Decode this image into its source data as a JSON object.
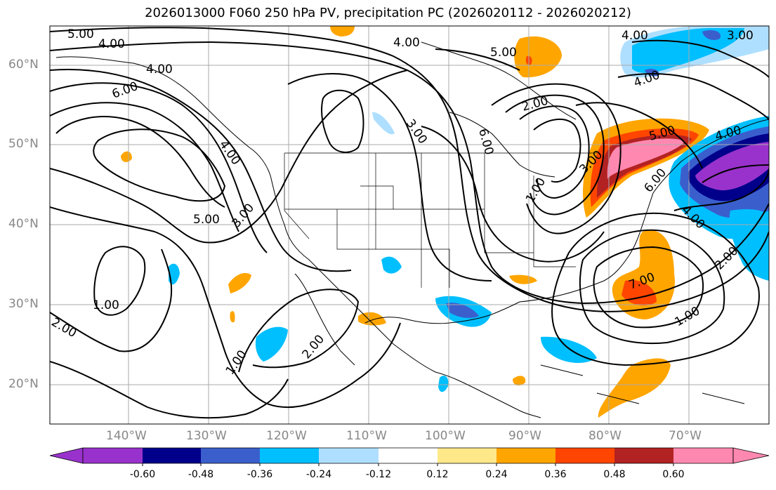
{
  "title": "2026013000 F060 250 hPa PV, precipitation PC (2026020112 - 2026020212)",
  "lat_labels": [
    "60°N",
    "50°N",
    "40°N",
    "30°N",
    "20°N"
  ],
  "lon_labels": [
    "140°W",
    "130°W",
    "120°W",
    "110°W",
    "100°W",
    "90°W",
    "80°W",
    "70°W"
  ],
  "contour_labels": [
    "5.00",
    "4.00",
    "4.00",
    "6.00",
    "4.00",
    "4.00",
    "5.00",
    "3.00",
    "1.00",
    "2.00",
    "1.00",
    "2.00",
    "3.00",
    "4.00",
    "5.00",
    "6.00",
    "2.00",
    "1.00",
    "3.00",
    "5.00",
    "4.00",
    "3.00",
    "4.00",
    "6.00",
    "4.00",
    "2.00",
    "7.00",
    "1.00"
  ],
  "colorbar": {
    "ticks": [
      "-0.60",
      "-0.48",
      "-0.36",
      "-0.24",
      "-0.12",
      "0.12",
      "0.24",
      "0.36",
      "0.48",
      "0.60"
    ],
    "colors": [
      "#9932cc",
      "#00008b",
      "#3a5fcd",
      "#00bfff",
      "#afdfff",
      "#ffffff",
      "#ffe88a",
      "#ffa500",
      "#ff4500",
      "#b22222",
      "#ff88b0"
    ]
  }
}
